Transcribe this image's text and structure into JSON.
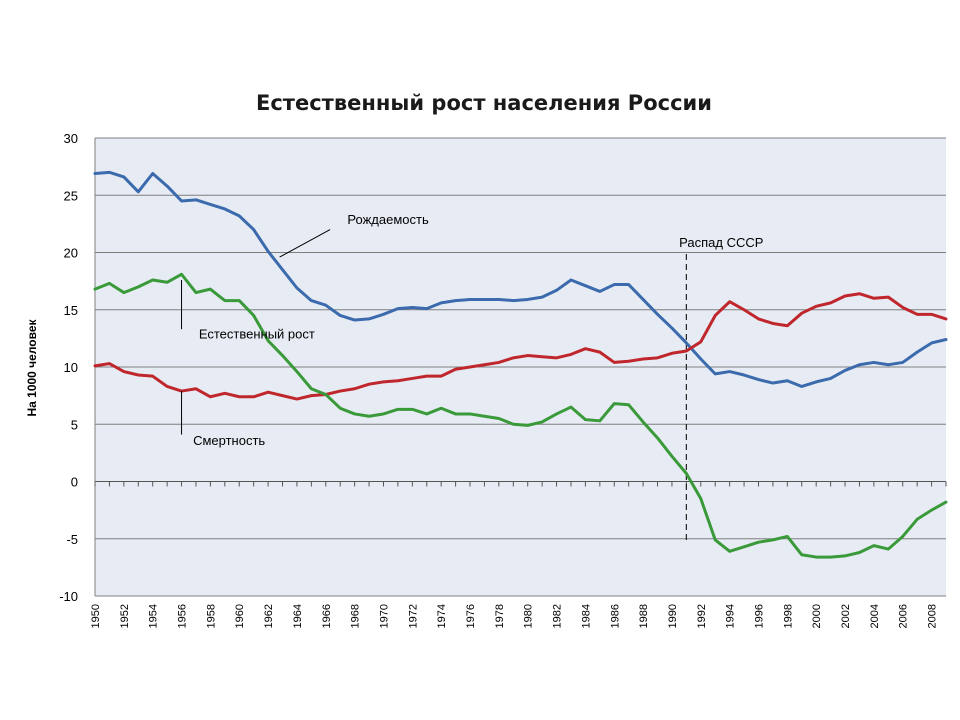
{
  "chart_data": {
    "type": "line",
    "title": "Естественный рост населения России",
    "xlabel": "",
    "ylabel": "На 1000 человек",
    "ylim": [
      -10,
      30
    ],
    "yticks": [
      30,
      25,
      20,
      15,
      10,
      5,
      0,
      -5,
      -10
    ],
    "xlim": [
      1950,
      2009
    ],
    "xtick_labels": [
      "1950",
      "1952",
      "1954",
      "1956",
      "1958",
      "1960",
      "1962",
      "1964",
      "1966",
      "1968",
      "1970",
      "1972",
      "1974",
      "1976",
      "1978",
      "1980",
      "1982",
      "1984",
      "1986",
      "1988",
      "1990",
      "1992",
      "1994",
      "1996",
      "1998",
      "2000",
      "2002",
      "2004",
      "2006",
      "2008"
    ],
    "grid": "horizontal",
    "legend": "none",
    "x": [
      1950,
      1951,
      1952,
      1953,
      1954,
      1955,
      1956,
      1957,
      1958,
      1959,
      1960,
      1961,
      1962,
      1963,
      1964,
      1965,
      1966,
      1967,
      1968,
      1969,
      1970,
      1971,
      1972,
      1973,
      1974,
      1975,
      1976,
      1977,
      1978,
      1979,
      1980,
      1981,
      1982,
      1983,
      1984,
      1985,
      1986,
      1987,
      1988,
      1989,
      1990,
      1991,
      1992,
      1993,
      1994,
      1995,
      1996,
      1997,
      1998,
      1999,
      2000,
      2001,
      2002,
      2003,
      2004,
      2005,
      2006,
      2007,
      2008,
      2009
    ],
    "series": [
      {
        "name": "Рождаемость",
        "color": "#3b6aad",
        "values": [
          26.9,
          27.0,
          26.6,
          25.3,
          26.9,
          25.8,
          24.5,
          24.6,
          24.2,
          23.8,
          23.2,
          22.0,
          20.1,
          18.5,
          16.9,
          15.8,
          15.4,
          14.5,
          14.1,
          14.2,
          14.6,
          15.1,
          15.2,
          15.1,
          15.6,
          15.8,
          15.9,
          15.9,
          15.9,
          15.8,
          15.9,
          16.1,
          16.7,
          17.6,
          17.1,
          16.6,
          17.2,
          17.2,
          15.9,
          14.6,
          13.4,
          12.1,
          10.7,
          9.4,
          9.6,
          9.3,
          8.9,
          8.6,
          8.8,
          8.3,
          8.7,
          9.0,
          9.7,
          10.2,
          10.4,
          10.2,
          10.4,
          11.3,
          12.1,
          12.4
        ]
      },
      {
        "name": "Смертность",
        "color": "#c0272d",
        "values": [
          10.1,
          10.3,
          9.6,
          9.3,
          9.2,
          8.3,
          7.9,
          8.1,
          7.4,
          7.7,
          7.4,
          7.4,
          7.8,
          7.5,
          7.2,
          7.5,
          7.6,
          7.9,
          8.1,
          8.5,
          8.7,
          8.8,
          9.0,
          9.2,
          9.2,
          9.8,
          10.0,
          10.2,
          10.4,
          10.8,
          11.0,
          10.9,
          10.8,
          11.1,
          11.6,
          11.3,
          10.4,
          10.5,
          10.7,
          10.8,
          11.2,
          11.4,
          12.2,
          14.5,
          15.7,
          15.0,
          14.2,
          13.8,
          13.6,
          14.7,
          15.3,
          15.6,
          16.2,
          16.4,
          16.0,
          16.1,
          15.2,
          14.6,
          14.6,
          14.2
        ]
      },
      {
        "name": "Естественный рост",
        "color": "#3a9a3a",
        "values": [
          16.8,
          17.3,
          16.5,
          17.0,
          17.6,
          17.4,
          18.1,
          16.5,
          16.8,
          15.8,
          15.8,
          14.5,
          12.3,
          11.0,
          9.6,
          8.1,
          7.6,
          6.4,
          5.9,
          5.7,
          5.9,
          6.3,
          6.3,
          5.9,
          6.4,
          5.9,
          5.9,
          5.7,
          5.5,
          5.0,
          4.9,
          5.2,
          5.9,
          6.5,
          5.4,
          5.3,
          6.8,
          6.7,
          5.2,
          3.8,
          2.2,
          0.7,
          -1.5,
          -5.1,
          -6.1,
          -5.7,
          -5.3,
          -5.1,
          -4.8,
          -6.4,
          -6.6,
          -6.6,
          -6.5,
          -6.2,
          -5.6,
          -5.9,
          -4.8,
          -3.3,
          -2.5,
          -1.8
        ]
      }
    ],
    "annotations": [
      {
        "text": "Рождаемость",
        "x": 1967.5,
        "y": 22.5
      },
      {
        "text": "Естественный рост",
        "x": 1957.2,
        "y": 12.5
      },
      {
        "text": "Смертность",
        "x": 1956.8,
        "y": 3.2
      },
      {
        "text": "Распад СССР",
        "x": 1990.5,
        "y": 20.5
      }
    ],
    "event_marker": {
      "label": "Распад СССР",
      "x": 1991
    }
  }
}
